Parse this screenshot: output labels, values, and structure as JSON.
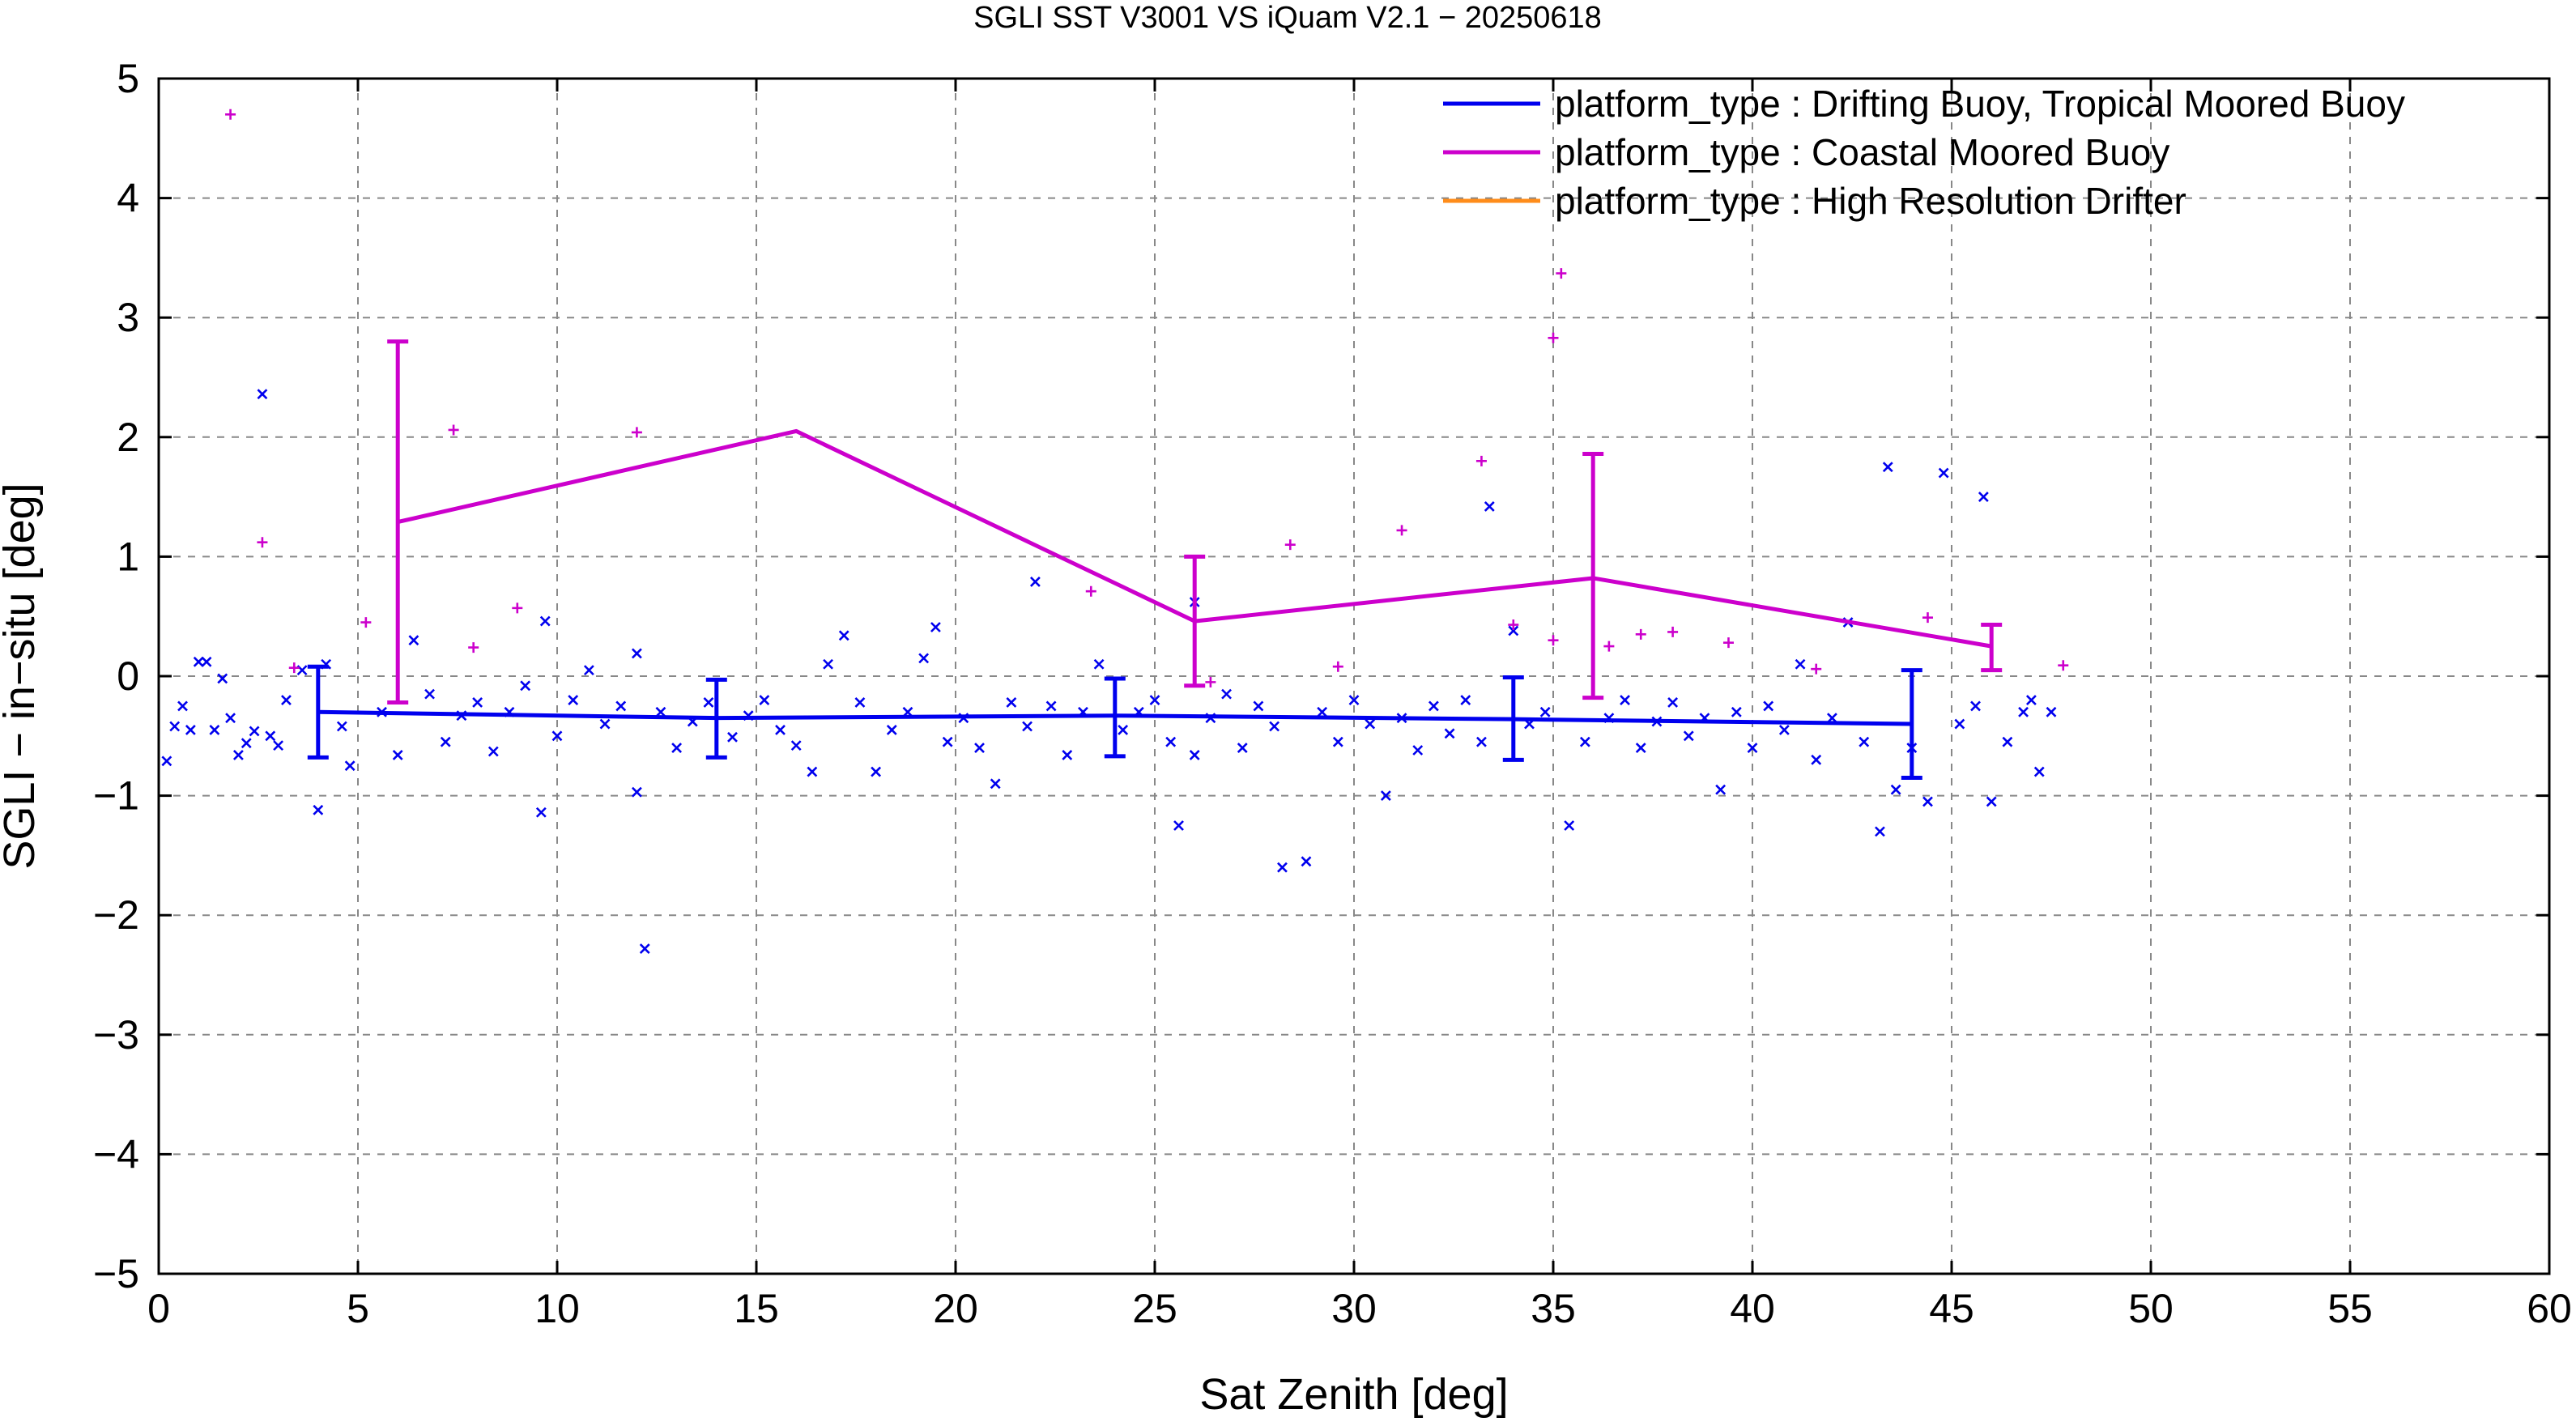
{
  "chart_data": {
    "type": "scatter",
    "title": "SGLI SST V3001 VS iQuam V2.1  − 20250618",
    "xlabel": "Sat Zenith [deg]",
    "ylabel": "SGLI − in−situ [deg]",
    "xlim": [
      0,
      60
    ],
    "ylim": [
      -5,
      5
    ],
    "xticks": [
      0,
      5,
      10,
      15,
      20,
      25,
      30,
      35,
      40,
      45,
      50,
      55,
      60
    ],
    "yticks": [
      -5,
      -4,
      -3,
      -2,
      -1,
      0,
      1,
      2,
      3,
      4,
      5
    ],
    "x_tick_labels": [
      "0",
      "5",
      "10",
      "15",
      "20",
      "25",
      "30",
      "35",
      "40",
      "45",
      "50",
      "55",
      "60"
    ],
    "y_tick_labels": [
      "−5",
      "−4",
      "−3",
      "−2",
      "−1",
      "0",
      "1",
      "2",
      "3",
      "4",
      "5"
    ],
    "grid": true,
    "legend_position": "top-right",
    "colors": {
      "drifting": "#0000ee",
      "coastal": "#cc00cc",
      "hrd": "#ff8c1a",
      "grid": "#888888"
    },
    "series": [
      {
        "name": "platform_type : Drifting Buoy, Tropical Moored Buoy",
        "color": "#0000ee",
        "marker": "x",
        "mean_line": {
          "x": [
            4,
            14,
            24,
            34,
            44
          ],
          "y": [
            -0.3,
            -0.35,
            -0.33,
            -0.36,
            -0.4
          ]
        },
        "error_bars": [
          {
            "x": 4,
            "low": -0.68,
            "high": 0.08
          },
          {
            "x": 14,
            "low": -0.68,
            "high": -0.03
          },
          {
            "x": 24,
            "low": -0.67,
            "high": -0.02
          },
          {
            "x": 34,
            "low": -0.7,
            "high": -0.01
          },
          {
            "x": 44,
            "low": -0.85,
            "high": 0.05
          }
        ],
        "points": [
          [
            0.2,
            -0.71
          ],
          [
            0.4,
            -0.42
          ],
          [
            0.6,
            -0.25
          ],
          [
            0.8,
            -0.45
          ],
          [
            1.0,
            0.12
          ],
          [
            1.2,
            0.12
          ],
          [
            1.4,
            -0.45
          ],
          [
            1.6,
            -0.02
          ],
          [
            1.8,
            -0.35
          ],
          [
            2.0,
            -0.66
          ],
          [
            2.2,
            -0.56
          ],
          [
            2.4,
            -0.46
          ],
          [
            2.6,
            2.36
          ],
          [
            2.8,
            -0.5
          ],
          [
            3.0,
            -0.58
          ],
          [
            3.2,
            -0.2
          ],
          [
            3.6,
            0.05
          ],
          [
            4.0,
            -1.12
          ],
          [
            4.2,
            0.1
          ],
          [
            4.6,
            -0.42
          ],
          [
            4.8,
            -0.75
          ],
          [
            5.6,
            -0.3
          ],
          [
            6.0,
            -0.66
          ],
          [
            6.4,
            0.3
          ],
          [
            6.8,
            -0.15
          ],
          [
            7.2,
            -0.55
          ],
          [
            7.6,
            -0.33
          ],
          [
            8.0,
            -0.22
          ],
          [
            8.4,
            -0.63
          ],
          [
            8.8,
            -0.3
          ],
          [
            9.2,
            -0.08
          ],
          [
            9.6,
            -1.14
          ],
          [
            9.7,
            0.46
          ],
          [
            10.0,
            -0.5
          ],
          [
            10.4,
            -0.2
          ],
          [
            10.8,
            0.05
          ],
          [
            11.2,
            -0.4
          ],
          [
            11.6,
            -0.25
          ],
          [
            12.0,
            0.19
          ],
          [
            12.0,
            -0.97
          ],
          [
            12.2,
            -2.28
          ],
          [
            12.6,
            -0.3
          ],
          [
            13.0,
            -0.6
          ],
          [
            13.4,
            -0.38
          ],
          [
            13.8,
            -0.22
          ],
          [
            14.4,
            -0.51
          ],
          [
            14.8,
            -0.33
          ],
          [
            15.2,
            -0.2
          ],
          [
            15.6,
            -0.45
          ],
          [
            16.0,
            -0.58
          ],
          [
            16.4,
            -0.8
          ],
          [
            16.8,
            0.1
          ],
          [
            17.2,
            0.34
          ],
          [
            17.6,
            -0.22
          ],
          [
            18.0,
            -0.8
          ],
          [
            18.4,
            -0.45
          ],
          [
            18.8,
            -0.3
          ],
          [
            19.2,
            0.15
          ],
          [
            19.5,
            0.41
          ],
          [
            19.8,
            -0.55
          ],
          [
            20.2,
            -0.35
          ],
          [
            20.6,
            -0.6
          ],
          [
            21.0,
            -0.9
          ],
          [
            21.4,
            -0.22
          ],
          [
            21.8,
            -0.42
          ],
          [
            22.0,
            0.79
          ],
          [
            22.4,
            -0.25
          ],
          [
            22.8,
            -0.66
          ],
          [
            23.2,
            -0.3
          ],
          [
            23.6,
            0.1
          ],
          [
            24.2,
            -0.45
          ],
          [
            24.6,
            -0.3
          ],
          [
            25.0,
            -0.2
          ],
          [
            25.4,
            -0.55
          ],
          [
            25.6,
            -1.25
          ],
          [
            26.0,
            0.62
          ],
          [
            26.0,
            -0.66
          ],
          [
            26.4,
            -0.35
          ],
          [
            26.8,
            -0.15
          ],
          [
            27.2,
            -0.6
          ],
          [
            27.6,
            -0.25
          ],
          [
            28.0,
            -0.42
          ],
          [
            28.2,
            -1.6
          ],
          [
            28.8,
            -1.55
          ],
          [
            29.2,
            -0.3
          ],
          [
            29.6,
            -0.55
          ],
          [
            30.0,
            -0.2
          ],
          [
            30.4,
            -0.4
          ],
          [
            30.8,
            -1.0
          ],
          [
            31.2,
            -0.35
          ],
          [
            31.6,
            -0.62
          ],
          [
            32.0,
            -0.25
          ],
          [
            32.4,
            -0.48
          ],
          [
            32.8,
            -0.2
          ],
          [
            33.2,
            -0.55
          ],
          [
            33.4,
            1.42
          ],
          [
            34.0,
            0.38
          ],
          [
            34.4,
            -0.4
          ],
          [
            34.8,
            -0.3
          ],
          [
            35.4,
            -1.25
          ],
          [
            35.8,
            -0.55
          ],
          [
            36.4,
            -0.35
          ],
          [
            36.8,
            -0.2
          ],
          [
            37.2,
            -0.6
          ],
          [
            37.6,
            -0.38
          ],
          [
            38.0,
            -0.22
          ],
          [
            38.4,
            -0.5
          ],
          [
            38.8,
            -0.35
          ],
          [
            39.2,
            -0.95
          ],
          [
            39.6,
            -0.3
          ],
          [
            40.0,
            -0.6
          ],
          [
            40.4,
            -0.25
          ],
          [
            40.8,
            -0.45
          ],
          [
            41.2,
            0.1
          ],
          [
            41.6,
            -0.7
          ],
          [
            42.0,
            -0.35
          ],
          [
            42.4,
            0.45
          ],
          [
            42.8,
            -0.55
          ],
          [
            43.2,
            -1.3
          ],
          [
            43.4,
            1.75
          ],
          [
            43.6,
            -0.95
          ],
          [
            44.0,
            -0.6
          ],
          [
            44.4,
            -1.05
          ],
          [
            44.8,
            1.7
          ],
          [
            45.2,
            -0.4
          ],
          [
            45.6,
            -0.25
          ],
          [
            45.8,
            1.5
          ],
          [
            46.0,
            -1.05
          ],
          [
            46.4,
            -0.55
          ],
          [
            46.8,
            -0.3
          ],
          [
            47.0,
            -0.2
          ],
          [
            47.2,
            -0.8
          ],
          [
            47.5,
            -0.3
          ]
        ]
      },
      {
        "name": "platform_type : Coastal Moored Buoy",
        "color": "#cc00cc",
        "marker": "+",
        "mean_line": {
          "x": [
            6,
            16,
            26,
            36,
            46
          ],
          "y": [
            1.29,
            2.05,
            0.46,
            0.82,
            0.25
          ]
        },
        "error_bars": [
          {
            "x": 6,
            "low": -0.22,
            "high": 2.8
          },
          {
            "x": 26,
            "low": -0.08,
            "high": 1.0
          },
          {
            "x": 36,
            "low": -0.18,
            "high": 1.86
          },
          {
            "x": 46,
            "low": 0.05,
            "high": 0.43
          }
        ],
        "points": [
          [
            1.8,
            4.7
          ],
          [
            2.6,
            1.12
          ],
          [
            3.4,
            0.07
          ],
          [
            5.2,
            0.45
          ],
          [
            7.4,
            2.06
          ],
          [
            7.9,
            0.24
          ],
          [
            9.0,
            0.57
          ],
          [
            12.0,
            2.04
          ],
          [
            23.4,
            0.71
          ],
          [
            26.4,
            -0.05
          ],
          [
            28.4,
            1.1
          ],
          [
            29.6,
            0.08
          ],
          [
            31.2,
            1.22
          ],
          [
            33.2,
            1.8
          ],
          [
            35.0,
            2.83
          ],
          [
            35.2,
            3.37
          ],
          [
            34.0,
            0.43
          ],
          [
            35.0,
            0.3
          ],
          [
            36.4,
            0.25
          ],
          [
            37.2,
            0.35
          ],
          [
            38.0,
            0.37
          ],
          [
            39.4,
            0.28
          ],
          [
            41.6,
            0.06
          ],
          [
            44.4,
            0.49
          ],
          [
            47.8,
            0.09
          ]
        ]
      },
      {
        "name": "platform_type : High Resolution Drifter",
        "color": "#ff8c1a",
        "marker": "none",
        "points": []
      }
    ]
  }
}
